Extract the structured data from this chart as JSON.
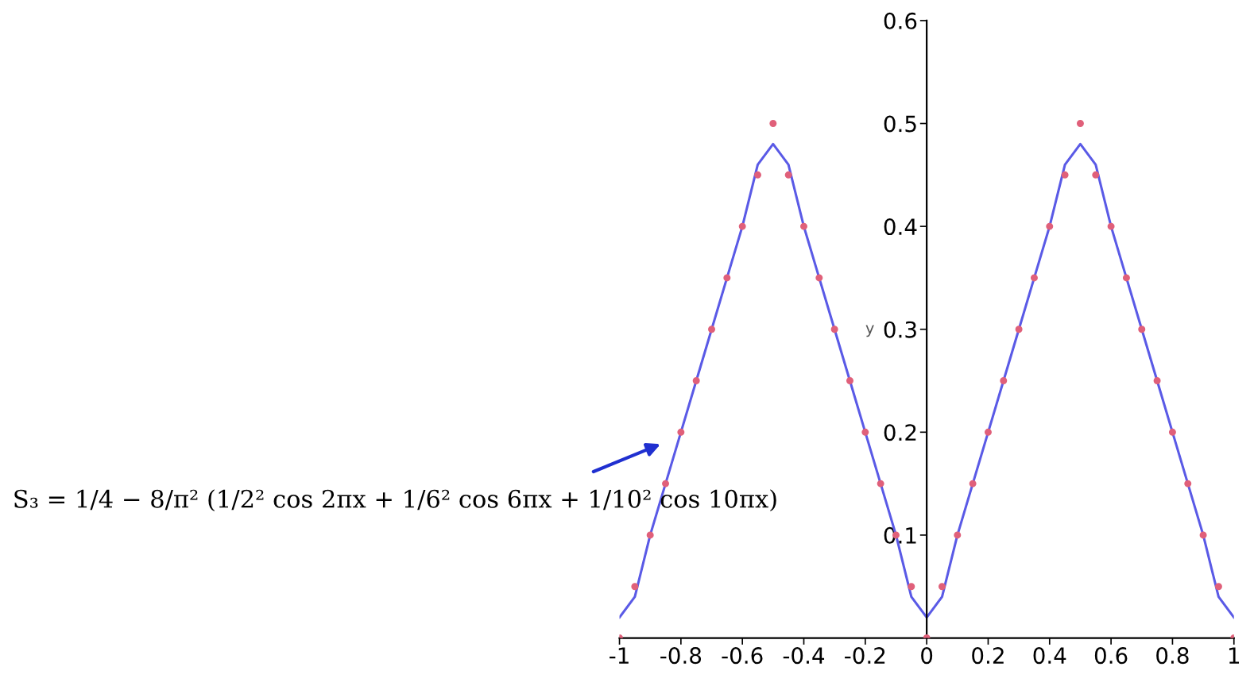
{
  "chart_data": {
    "type": "line",
    "ylabel": "y",
    "xlim": [
      -1,
      1
    ],
    "ylim": [
      0,
      0.6
    ],
    "xticks": [
      -1,
      -0.8,
      -0.6,
      -0.4,
      -0.2,
      0,
      0.2,
      0.4,
      0.6,
      0.8,
      1
    ],
    "yticks": [
      0.1,
      0.2,
      0.3,
      0.4,
      0.5,
      0.6
    ],
    "grid": false,
    "series": [
      {
        "color": "#5a5ae6",
        "marker": "none",
        "x": [
          -1,
          -0.95,
          -0.9,
          -0.85,
          -0.8,
          -0.75,
          -0.7,
          -0.65,
          -0.6,
          -0.55,
          -0.5,
          -0.45,
          -0.4,
          -0.35,
          -0.3,
          -0.25,
          -0.2,
          -0.15,
          -0.1,
          -0.05,
          0,
          0.05,
          0.1,
          0.15,
          0.2,
          0.25,
          0.3,
          0.35,
          0.4,
          0.45,
          0.5,
          0.55,
          0.6,
          0.65,
          0.7,
          0.75,
          0.8,
          0.85,
          0.9,
          0.95,
          1
        ],
        "values": [
          0.02,
          0.04,
          0.1,
          0.15,
          0.2,
          0.25,
          0.3,
          0.35,
          0.4,
          0.46,
          0.48,
          0.46,
          0.4,
          0.35,
          0.3,
          0.25,
          0.2,
          0.15,
          0.1,
          0.04,
          0.02,
          0.04,
          0.1,
          0.15,
          0.2,
          0.25,
          0.3,
          0.35,
          0.4,
          0.46,
          0.48,
          0.46,
          0.4,
          0.35,
          0.3,
          0.25,
          0.2,
          0.15,
          0.1,
          0.04,
          0.02
        ]
      },
      {
        "type": "scatter",
        "color": "#e0607a",
        "marker": "circle",
        "x": [
          -1,
          -0.95,
          -0.9,
          -0.85,
          -0.8,
          -0.75,
          -0.7,
          -0.65,
          -0.6,
          -0.55,
          -0.5,
          -0.45,
          -0.4,
          -0.35,
          -0.3,
          -0.25,
          -0.2,
          -0.15,
          -0.1,
          -0.05,
          0,
          0.05,
          0.1,
          0.15,
          0.2,
          0.25,
          0.3,
          0.35,
          0.4,
          0.45,
          0.5,
          0.55,
          0.6,
          0.65,
          0.7,
          0.75,
          0.8,
          0.85,
          0.9,
          0.95,
          1
        ],
        "values": [
          0,
          0.05,
          0.1,
          0.15,
          0.2,
          0.25,
          0.3,
          0.35,
          0.4,
          0.45,
          0.5,
          0.45,
          0.4,
          0.35,
          0.3,
          0.25,
          0.2,
          0.15,
          0.1,
          0.05,
          0,
          0.05,
          0.1,
          0.15,
          0.2,
          0.25,
          0.3,
          0.35,
          0.4,
          0.45,
          0.5,
          0.45,
          0.4,
          0.35,
          0.3,
          0.25,
          0.2,
          0.15,
          0.1,
          0.05,
          0
        ]
      }
    ],
    "annotations": [
      "S₃ = 1/4 − 8/π² (1/2² cos 2πx + 1/6² cos 6πx + 1/10² cos 10πx)"
    ]
  }
}
